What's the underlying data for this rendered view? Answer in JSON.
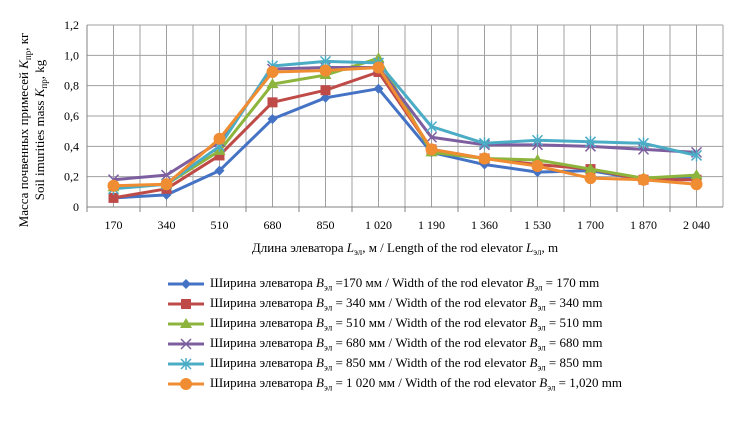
{
  "chart_data": {
    "type": "line",
    "title": "",
    "xlabel": {
      "pre": "Длина элеватора ",
      "var": "L",
      "sub": "эл",
      "mid": ", м / Length of the rod elevator ",
      "var2": "L",
      "sub2": "эл",
      "post": ", m"
    },
    "ylabel": {
      "line1_pre": "Масса почвенных примесей ",
      "line1_var": "K",
      "line1_sub": "пр",
      "line1_post": ", кг",
      "line2_pre": "Soil imurities mass ",
      "line2_var": "K",
      "line2_sub": "пр",
      "line2_post": ", kg"
    },
    "categories": [
      "170",
      "340",
      "510",
      "680",
      "850",
      "1 020",
      "1 190",
      "1 360",
      "1 530",
      "1 700",
      "1 870",
      "2 040"
    ],
    "ylim": [
      0,
      1.2
    ],
    "yticks": [
      "0",
      "0,2",
      "0,4",
      "0,6",
      "0,8",
      "1,0",
      "1,2"
    ],
    "grid": true,
    "legend_position": "bottom",
    "series": [
      {
        "name": "Ширина элеватора Bэл =170 мм / Width of the rod elevator Bэл = 170 mm",
        "pre": "Ширина элеватора ",
        "mid": " =170 мм / Width of the rod elevator ",
        "post": " = 170 mm",
        "color": "#4472c4",
        "marker": "diamond",
        "values": [
          0.06,
          0.08,
          0.24,
          0.58,
          0.72,
          0.78,
          0.36,
          0.28,
          0.23,
          0.24,
          0.18,
          0.2
        ]
      },
      {
        "name": "Ширина элеватора Bэл = 340 мм / Width of the rod elevator Bэл = 340 mm",
        "pre": "Ширина элеватора ",
        "mid": " = 340 мм / Width of the rod elevator ",
        "post": " = 340 mm",
        "color": "#be4b48",
        "marker": "square",
        "values": [
          0.06,
          0.12,
          0.34,
          0.69,
          0.77,
          0.89,
          0.38,
          0.32,
          0.28,
          0.25,
          0.18,
          0.18
        ]
      },
      {
        "name": "Ширина элеватора Bэл = 510 мм / Width of the rod elevator Bэл = 510 mm",
        "pre": "Ширина элеватора ",
        "mid": " = 510 мм / Width of the rod elevator ",
        "post": " = 510 mm",
        "color": "#8db43c",
        "marker": "triangle",
        "values": [
          0.13,
          0.15,
          0.37,
          0.81,
          0.87,
          0.98,
          0.36,
          0.32,
          0.31,
          0.25,
          0.19,
          0.21
        ]
      },
      {
        "name": "Ширина элеватора Bэл = 680 мм / Width of the rod elevator Bэл = 680 mm",
        "pre": "Ширина элеватора ",
        "mid": " = 680 мм / Width of the rod elevator ",
        "post": " = 680 mm",
        "color": "#7d5fa0",
        "marker": "x",
        "values": [
          0.18,
          0.21,
          0.43,
          0.91,
          0.92,
          0.92,
          0.46,
          0.41,
          0.41,
          0.4,
          0.38,
          0.36
        ]
      },
      {
        "name": "Ширина элеватора Bэл = 850 мм / Width of the rod elevator Bэл = 850 mm",
        "pre": "Ширина элеватора ",
        "mid": " = 850 мм / Width of the rod elevator ",
        "post": " = 850 mm",
        "color": "#4bacc6",
        "marker": "star",
        "values": [
          0.12,
          0.15,
          0.4,
          0.93,
          0.96,
          0.95,
          0.53,
          0.42,
          0.44,
          0.43,
          0.42,
          0.34
        ]
      },
      {
        "name": "Ширина элеватора Bэл = 1 020 мм / Width of the rod elevator Bэл = 1,020 mm",
        "pre": "Ширина элеватора ",
        "mid": " = 1 020 мм / Width of the rod elevator ",
        "post": " = 1,020 mm",
        "color": "#f08c32",
        "marker": "circle",
        "values": [
          0.14,
          0.15,
          0.45,
          0.89,
          0.9,
          0.92,
          0.38,
          0.32,
          0.27,
          0.19,
          0.18,
          0.15
        ]
      }
    ],
    "legend_var": "B",
    "legend_sub": "эл"
  }
}
